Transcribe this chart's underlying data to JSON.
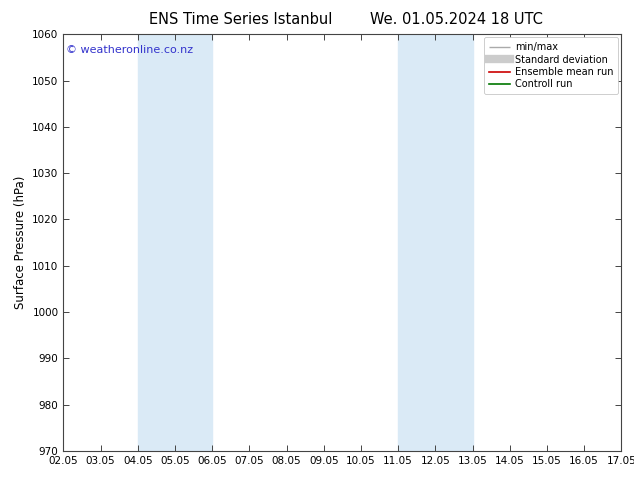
{
  "title_left": "ENS Time Series Istanbul",
  "title_right": "We. 01.05.2024 18 UTC",
  "ylabel": "Surface Pressure (hPa)",
  "ylim": [
    970,
    1060
  ],
  "yticks": [
    970,
    980,
    990,
    1000,
    1010,
    1020,
    1030,
    1040,
    1050,
    1060
  ],
  "x_labels": [
    "02.05",
    "03.05",
    "04.05",
    "05.05",
    "06.05",
    "07.05",
    "08.05",
    "09.05",
    "10.05",
    "11.05",
    "12.05",
    "13.05",
    "14.05",
    "15.05",
    "16.05",
    "17.05"
  ],
  "x_values": [
    0,
    1,
    2,
    3,
    4,
    5,
    6,
    7,
    8,
    9,
    10,
    11,
    12,
    13,
    14,
    15
  ],
  "shaded_bands": [
    {
      "xmin": 2,
      "xmax": 4,
      "color": "#daeaf6"
    },
    {
      "xmin": 9,
      "xmax": 11,
      "color": "#daeaf6"
    }
  ],
  "watermark": "© weatheronline.co.nz",
  "legend_labels": [
    "min/max",
    "Standard deviation",
    "Ensemble mean run",
    "Controll run"
  ],
  "legend_colors": [
    "#aaaaaa",
    "#cccccc",
    "#cc0000",
    "#007700"
  ],
  "bg_color": "#ffffff",
  "plot_bg_color": "#ffffff",
  "spine_color": "#444444",
  "title_fontsize": 10.5,
  "tick_fontsize": 7.5,
  "label_fontsize": 8.5,
  "watermark_color": "#3333cc",
  "watermark_fontsize": 8
}
